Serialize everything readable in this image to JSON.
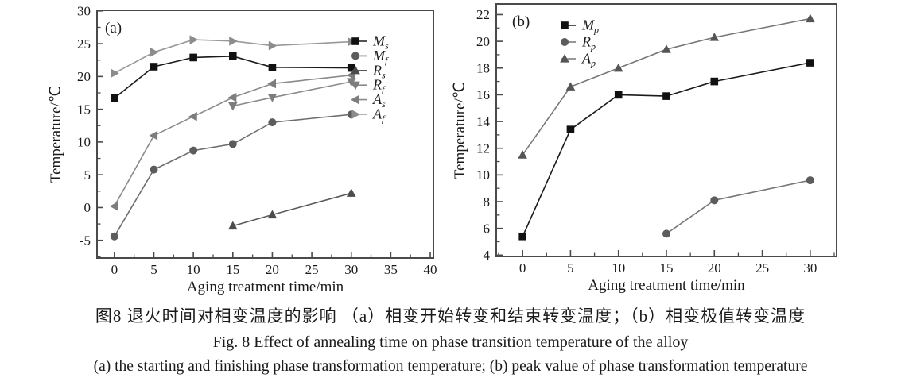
{
  "figure": {
    "caption_zh": "图8  退火时间对相变温度的影响  （a）相变开始转变和结束转变温度；（b）相变极值转变温度",
    "caption_en": "Fig. 8  Effect of annealing time on phase transition temperature of the alloy",
    "caption_sub": "(a) the starting and finishing phase transformation temperature; (b) peak value of phase transformation temperature"
  },
  "colors": {
    "axis": "#4a4a4a",
    "text": "#1a1a1a"
  },
  "chart_data": [
    {
      "type": "line",
      "panel_label": "(a)",
      "xlabel": "Aging treatment time/min",
      "ylabel": "Temperature/℃",
      "xlim": [
        -2.2,
        40.4
      ],
      "ylim": [
        -7.7,
        30.1
      ],
      "xticks": [
        0,
        5,
        10,
        15,
        20,
        25,
        30,
        35,
        40
      ],
      "yticks": [
        -5,
        0,
        5,
        10,
        15,
        20,
        25,
        30
      ],
      "x_minor": 2.5,
      "y_minor": 2.5,
      "grid": false,
      "legend_position": "inside-right",
      "series": [
        {
          "name": "M",
          "sub": "s",
          "marker": "square",
          "color": "#111111",
          "line_color": "#1a1a1a",
          "x": [
            0,
            5,
            10,
            15,
            20,
            30
          ],
          "values": [
            16.7,
            21.5,
            22.9,
            23.1,
            21.4,
            21.3
          ]
        },
        {
          "name": "M",
          "sub": "f",
          "marker": "circle",
          "color": "#5c5c5c",
          "line_color": "#6e6e6e",
          "x": [
            0,
            5,
            10,
            15,
            20,
            30
          ],
          "values": [
            -4.4,
            5.8,
            8.7,
            9.7,
            13.0,
            14.2
          ]
        },
        {
          "name": "R",
          "sub": "s",
          "marker": "triangle-up",
          "color": "#4c4c4c",
          "line_color": "#5a5a5a",
          "x": [
            15,
            20,
            30
          ],
          "values": [
            -2.8,
            -1.1,
            2.2
          ]
        },
        {
          "name": "R",
          "sub": "f",
          "marker": "triangle-down",
          "color": "#7d7d7d",
          "line_color": "#8a8a8a",
          "x": [
            15,
            20,
            30
          ],
          "values": [
            15.5,
            16.8,
            19.2
          ]
        },
        {
          "name": "A",
          "sub": "s",
          "marker": "triangle-left",
          "color": "#7d7d7d",
          "line_color": "#8a8a8a",
          "x": [
            0,
            5,
            10,
            15,
            20,
            30
          ],
          "values": [
            0.2,
            11.0,
            13.9,
            16.8,
            18.9,
            20.2
          ]
        },
        {
          "name": "A",
          "sub": "f",
          "marker": "triangle-right",
          "color": "#8c8c8c",
          "line_color": "#999999",
          "x": [
            0,
            5,
            10,
            15,
            20,
            30
          ],
          "values": [
            20.5,
            23.7,
            25.6,
            25.4,
            24.7,
            25.3
          ]
        }
      ]
    },
    {
      "type": "line",
      "panel_label": "(b)",
      "xlabel": "Aging treatment time/min",
      "ylabel": "Temperature/℃",
      "xlim": [
        -2.75,
        32.75
      ],
      "ylim": [
        3.9,
        22.8
      ],
      "xticks": [
        0,
        5,
        10,
        15,
        20,
        25,
        30
      ],
      "yticks": [
        4,
        6,
        8,
        10,
        12,
        14,
        16,
        18,
        20,
        22
      ],
      "x_minor": 2.5,
      "y_minor": 1,
      "grid": false,
      "legend_position": "inside-top-left",
      "series": [
        {
          "name": "M",
          "sub": "p",
          "marker": "square",
          "color": "#111111",
          "line_color": "#1a1a1a",
          "x": [
            0,
            5,
            10,
            15,
            20,
            30
          ],
          "values": [
            5.4,
            13.4,
            16.0,
            15.9,
            17.0,
            18.4
          ]
        },
        {
          "name": "R",
          "sub": "p",
          "marker": "circle",
          "color": "#5c5c5c",
          "line_color": "#777777",
          "x": [
            15,
            20,
            30
          ],
          "values": [
            5.6,
            8.1,
            9.6
          ]
        },
        {
          "name": "A",
          "sub": "p",
          "marker": "triangle-up",
          "color": "#555555",
          "line_color": "#777777",
          "x": [
            0,
            5,
            10,
            15,
            20,
            30
          ],
          "values": [
            11.5,
            16.6,
            18.0,
            19.4,
            20.3,
            21.7
          ]
        }
      ]
    }
  ]
}
